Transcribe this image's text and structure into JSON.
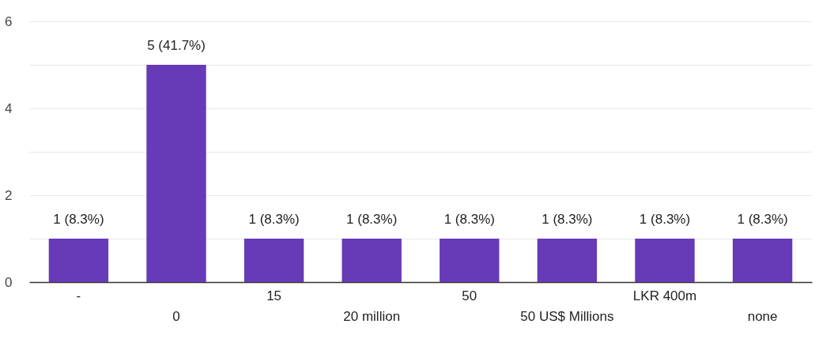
{
  "chart_data": {
    "type": "bar",
    "categories": [
      "-",
      "0",
      "15",
      "20 million",
      "50",
      "50 US$ Millions",
      "LKR 400m",
      "none"
    ],
    "values": [
      1,
      5,
      1,
      1,
      1,
      1,
      1,
      1
    ],
    "value_labels": [
      "1 (8.3%)",
      "5 (41.7%)",
      "1 (8.3%)",
      "1 (8.3%)",
      "1 (8.3%)",
      "1 (8.3%)",
      "1 (8.3%)",
      "1 (8.3%)"
    ],
    "color": "#673ab7",
    "ylim": [
      0,
      6
    ],
    "yticks": [
      0,
      {
        "value": 1,
        "label": null
      },
      2,
      {
        "value": 3,
        "label": null
      },
      4,
      {
        "value": 5,
        "label": null
      },
      6
    ],
    "grid": true
  }
}
